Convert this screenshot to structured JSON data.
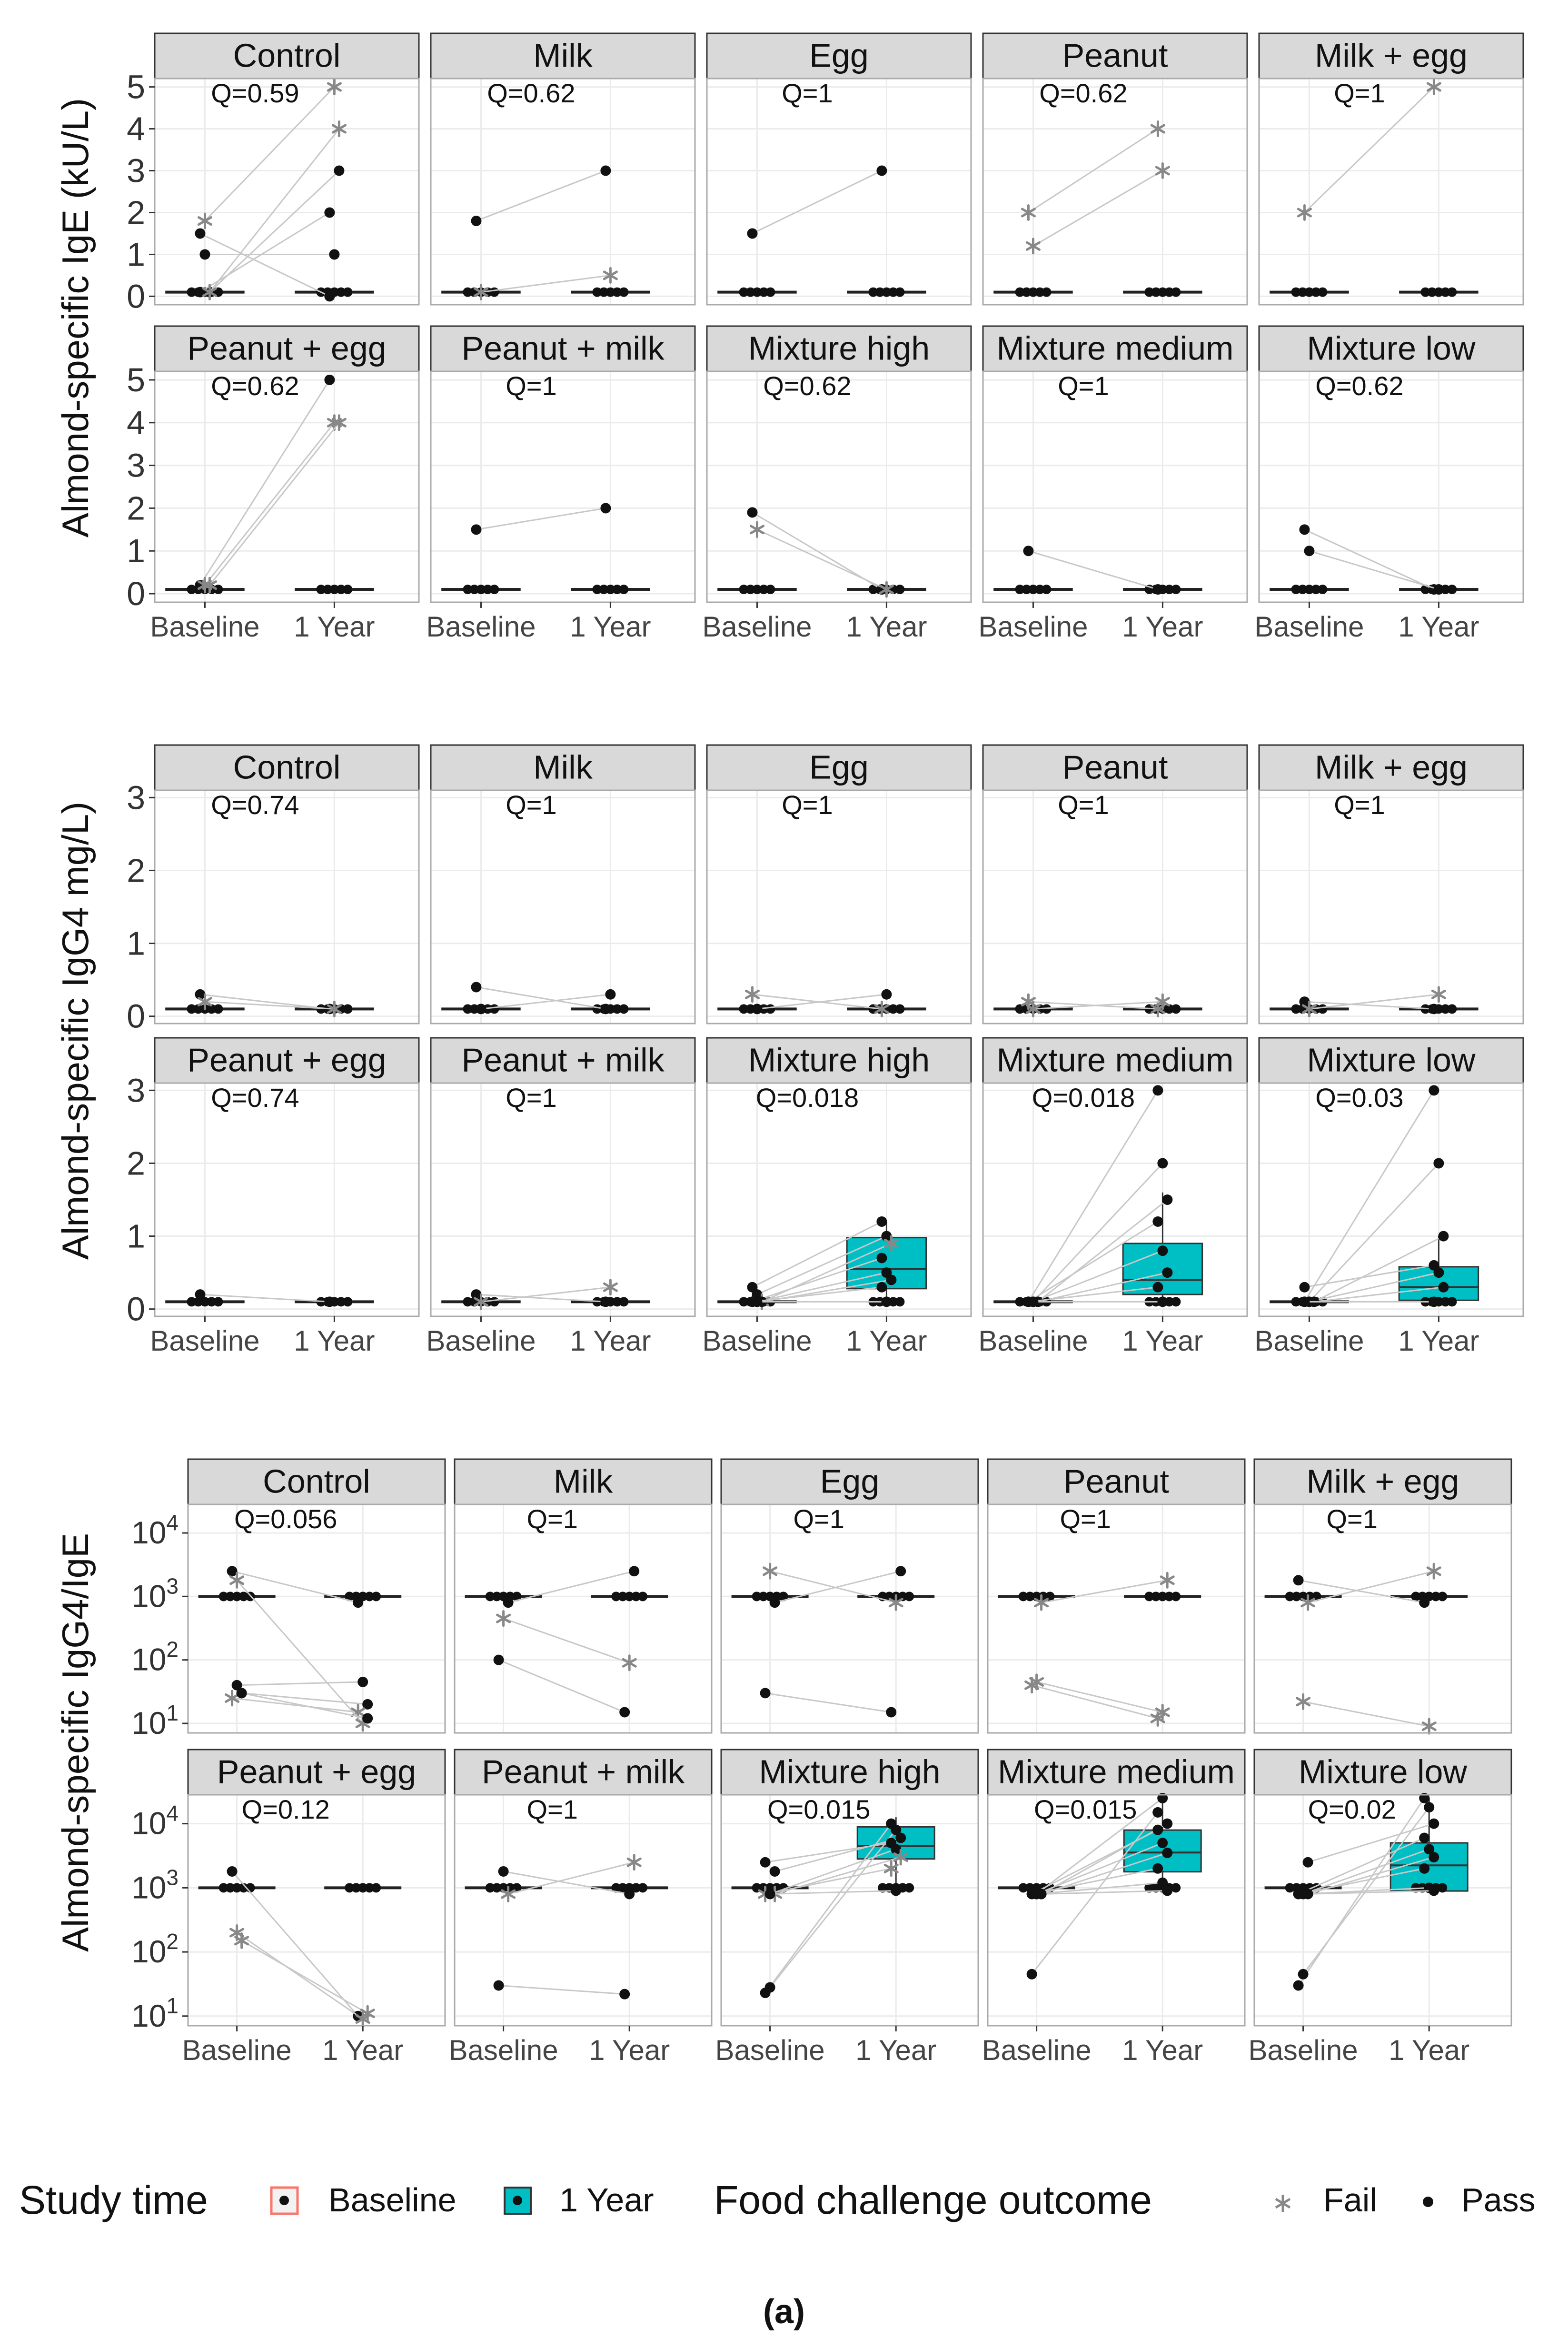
{
  "figure_label": "(a)",
  "legend": {
    "study_time_title": "Study time",
    "study_time_items": [
      {
        "label": "Baseline",
        "color": "#f8766d"
      },
      {
        "label": "1 Year",
        "color": "#00bfc4"
      }
    ],
    "outcome_title": "Food challenge outcome",
    "outcome_items": [
      {
        "label": "Fail",
        "shape": "asterisk"
      },
      {
        "label": "Pass",
        "shape": "dot"
      }
    ]
  },
  "colors": {
    "strip": "#d9d9d9",
    "panel_border": "#333333",
    "grid": "#ebebeb",
    "box_one_year": "#00bfc4",
    "box_baseline": "#f8766d",
    "line": "#c8c8c8",
    "point": "#111111",
    "fail_point": "#888888"
  },
  "chart_data": [
    {
      "type": "scatter",
      "title": "",
      "ylabel": "Almond-specific IgE (kU/L)",
      "xlabel": "",
      "yscale": "linear",
      "ylim": [
        -0.2,
        5.2
      ],
      "yticks": [
        {
          "v": 0,
          "label": "0"
        },
        {
          "v": 1,
          "label": "1"
        },
        {
          "v": 2,
          "label": "2"
        },
        {
          "v": 3,
          "label": "3"
        },
        {
          "v": 4,
          "label": "4"
        },
        {
          "v": 5,
          "label": "5"
        }
      ],
      "categories": [
        "Baseline",
        "1 Year"
      ],
      "panels": [
        {
          "title": "Control",
          "q": "Q=0.59",
          "floor": 0.1,
          "pairs": [
            [
              1.5,
              0,
              "p"
            ],
            [
              1.0,
              1.0,
              "p"
            ],
            [
              0.1,
              3.0,
              "p"
            ],
            [
              0.1,
              2.0,
              "p"
            ],
            [
              1.8,
              5.0,
              "f"
            ],
            [
              0.1,
              4.0,
              "f"
            ]
          ]
        },
        {
          "title": "Milk",
          "q": "Q=0.62",
          "floor": 0.1,
          "pairs": [
            [
              1.8,
              3.0,
              "p"
            ],
            [
              0.1,
              0.5,
              "f"
            ]
          ]
        },
        {
          "title": "Egg",
          "q": "Q=1",
          "floor": 0.1,
          "pairs": [
            [
              1.5,
              3.0,
              "p"
            ]
          ]
        },
        {
          "title": "Peanut",
          "q": "Q=0.62",
          "floor": 0.1,
          "pairs": [
            [
              2.0,
              4.0,
              "f"
            ],
            [
              1.2,
              3.0,
              "f"
            ]
          ]
        },
        {
          "title": "Milk + egg",
          "q": "Q=1",
          "floor": 0.1,
          "pairs": [
            [
              2.0,
              5.0,
              "f"
            ]
          ]
        },
        {
          "title": "Peanut + egg",
          "q": "Q=0.62",
          "floor": 0.1,
          "pairs": [
            [
              0.2,
              5.0,
              "p"
            ],
            [
              0.2,
              4.0,
              "f"
            ],
            [
              0.2,
              4.0,
              "f"
            ]
          ]
        },
        {
          "title": "Peanut + milk",
          "q": "Q=1",
          "floor": 0.1,
          "pairs": [
            [
              1.5,
              2.0,
              "p"
            ]
          ]
        },
        {
          "title": "Mixture high",
          "q": "Q=0.62",
          "floor": 0.1,
          "pairs": [
            [
              1.9,
              0.1,
              "p"
            ],
            [
              1.5,
              0.1,
              "f"
            ]
          ]
        },
        {
          "title": "Mixture medium",
          "q": "Q=1",
          "floor": 0.1,
          "pairs": [
            [
              1.0,
              0.1,
              "p"
            ]
          ]
        },
        {
          "title": "Mixture low",
          "q": "Q=0.62",
          "floor": 0.1,
          "pairs": [
            [
              1.5,
              0.1,
              "p"
            ],
            [
              1.0,
              0.1,
              "p"
            ]
          ]
        }
      ]
    },
    {
      "type": "scatter",
      "title": "",
      "ylabel": "Almond-specific IgG4 mg/L)",
      "xlabel": "",
      "yscale": "linear",
      "ylim": [
        -0.1,
        3.1
      ],
      "yticks": [
        {
          "v": 0,
          "label": "0"
        },
        {
          "v": 1,
          "label": "1"
        },
        {
          "v": 2,
          "label": "2"
        },
        {
          "v": 3,
          "label": "3"
        }
      ],
      "categories": [
        "Baseline",
        "1 Year"
      ],
      "panels": [
        {
          "title": "Control",
          "q": "Q=0.74",
          "floor": 0.1,
          "pairs": [
            [
              0.3,
              0.1,
              "p"
            ],
            [
              0.2,
              0.1,
              "f"
            ]
          ]
        },
        {
          "title": "Milk",
          "q": "Q=1",
          "floor": 0.1,
          "pairs": [
            [
              0.4,
              0.1,
              "p"
            ],
            [
              0.1,
              0.3,
              "p"
            ]
          ]
        },
        {
          "title": "Egg",
          "q": "Q=1",
          "floor": 0.1,
          "pairs": [
            [
              0.3,
              0.1,
              "f"
            ],
            [
              0.1,
              0.3,
              "p"
            ]
          ]
        },
        {
          "title": "Peanut",
          "q": "Q=1",
          "floor": 0.1,
          "pairs": [
            [
              0.2,
              0.1,
              "f"
            ],
            [
              0.1,
              0.2,
              "f"
            ]
          ]
        },
        {
          "title": "Milk + egg",
          "q": "Q=1",
          "floor": 0.1,
          "pairs": [
            [
              0.2,
              0.1,
              "p"
            ],
            [
              0.1,
              0.3,
              "f"
            ]
          ]
        },
        {
          "title": "Peanut + egg",
          "q": "Q=0.74",
          "floor": 0.1,
          "pairs": [
            [
              0.2,
              0.1,
              "p"
            ]
          ]
        },
        {
          "title": "Peanut + milk",
          "q": "Q=1",
          "floor": 0.1,
          "pairs": [
            [
              0.2,
              0.1,
              "p"
            ],
            [
              0.1,
              0.3,
              "f"
            ]
          ]
        },
        {
          "title": "Mixture high",
          "q": "Q=0.018",
          "floor": 0.1,
          "box": {
            "q1": 0.28,
            "median": 0.55,
            "q3": 0.98,
            "wlo": 0.1,
            "whi": 1.2
          },
          "pairs": [
            [
              0.3,
              1.2,
              "p"
            ],
            [
              0.2,
              1.0,
              "p"
            ],
            [
              0.1,
              0.9,
              "f"
            ],
            [
              0.1,
              0.7,
              "p"
            ],
            [
              0.1,
              0.5,
              "p"
            ],
            [
              0.1,
              0.4,
              "p"
            ],
            [
              0.1,
              0.3,
              "p"
            ],
            [
              0.1,
              0.1,
              "p"
            ]
          ]
        },
        {
          "title": "Mixture medium",
          "q": "Q=0.018",
          "floor": 0.1,
          "box": {
            "q1": 0.2,
            "median": 0.4,
            "q3": 0.9,
            "wlo": 0.1,
            "whi": 1.6
          },
          "pairs": [
            [
              0.1,
              3.0,
              "p"
            ],
            [
              0.1,
              2.0,
              "p"
            ],
            [
              0.1,
              1.5,
              "p"
            ],
            [
              0.1,
              1.2,
              "p"
            ],
            [
              0.1,
              0.8,
              "p"
            ],
            [
              0.1,
              0.5,
              "p"
            ],
            [
              0.1,
              0.3,
              "p"
            ],
            [
              0.1,
              0.1,
              "p"
            ]
          ]
        },
        {
          "title": "Mixture low",
          "q": "Q=0.03",
          "floor": 0.1,
          "box": {
            "q1": 0.12,
            "median": 0.3,
            "q3": 0.58,
            "wlo": 0.1,
            "whi": 1.0
          },
          "pairs": [
            [
              0.1,
              3.0,
              "p"
            ],
            [
              0.1,
              2.0,
              "p"
            ],
            [
              0.1,
              1.0,
              "p"
            ],
            [
              0.3,
              0.6,
              "p"
            ],
            [
              0.1,
              0.5,
              "p"
            ],
            [
              0.1,
              0.3,
              "p"
            ],
            [
              0.1,
              0.1,
              "p"
            ]
          ]
        }
      ]
    },
    {
      "type": "scatter",
      "title": "",
      "ylabel": "Almond-specific IgG4/IgE",
      "xlabel": "",
      "yscale": "log10",
      "ylim": [
        0.85,
        4.45
      ],
      "yticks": [
        {
          "v": 1,
          "base": "10",
          "exp": "1"
        },
        {
          "v": 2,
          "base": "10",
          "exp": "2"
        },
        {
          "v": 3,
          "base": "10",
          "exp": "3"
        },
        {
          "v": 4,
          "base": "10",
          "exp": "4"
        }
      ],
      "categories": [
        "Baseline",
        "1 Year"
      ],
      "panels": [
        {
          "title": "Control",
          "q": "Q=0.056",
          "floor": 1000,
          "pairs": [
            [
              2500,
              800,
              "p"
            ],
            [
              40,
              45,
              "p"
            ],
            [
              30,
              20,
              "p"
            ],
            [
              25,
              15,
              "f"
            ],
            [
              1800,
              10,
              "f"
            ],
            [
              30,
              12,
              "p"
            ]
          ]
        },
        {
          "title": "Milk",
          "q": "Q=1",
          "floor": 1000,
          "pairs": [
            [
              100,
              15,
              "p"
            ],
            [
              450,
              90,
              "f"
            ],
            [
              800,
              2500,
              "p"
            ]
          ]
        },
        {
          "title": "Egg",
          "q": "Q=1",
          "floor": 1000,
          "pairs": [
            [
              30,
              15,
              "p"
            ],
            [
              2500,
              800,
              "f"
            ],
            [
              800,
              2500,
              "p"
            ]
          ]
        },
        {
          "title": "Peanut",
          "q": "Q=1",
          "floor": 1000,
          "pairs": [
            [
              40,
              12,
              "f"
            ],
            [
              45,
              15,
              "f"
            ],
            [
              800,
              1800,
              "f"
            ]
          ]
        },
        {
          "title": "Milk + egg",
          "q": "Q=1",
          "floor": 1000,
          "pairs": [
            [
              1800,
              800,
              "p"
            ],
            [
              22,
              9,
              "f"
            ],
            [
              800,
              2500,
              "f"
            ]
          ]
        },
        {
          "title": "Peanut + egg",
          "q": "Q=0.12",
          "floor": 1000,
          "pairs": [
            [
              1800,
              10,
              "p"
            ],
            [
              200,
              9,
              "f"
            ],
            [
              150,
              11,
              "f"
            ]
          ]
        },
        {
          "title": "Peanut + milk",
          "q": "Q=1",
          "floor": 1000,
          "pairs": [
            [
              30,
              22,
              "p"
            ],
            [
              1800,
              800,
              "p"
            ],
            [
              800,
              2500,
              "f"
            ]
          ]
        },
        {
          "title": "Mixture high",
          "q": "Q=0.015",
          "floor": 1000,
          "box": {
            "log_q1": 3.45,
            "log_median": 3.65,
            "log_q3": 3.95,
            "log_wlo": 3.0,
            "log_whi": 4.1
          },
          "pairs": [
            [
              23,
              10000,
              "p"
            ],
            [
              28,
              8000,
              "p"
            ],
            [
              1800,
              6000,
              "p"
            ],
            [
              2500,
              5000,
              "p"
            ],
            [
              800,
              4000,
              "p"
            ],
            [
              800,
              3000,
              "f"
            ],
            [
              800,
              2000,
              "f"
            ],
            [
              800,
              900,
              "p"
            ]
          ]
        },
        {
          "title": "Mixture medium",
          "q": "Q=0.015",
          "floor": 1000,
          "box": {
            "log_q1": 3.25,
            "log_median": 3.55,
            "log_q3": 3.9,
            "log_wlo": 3.0,
            "log_whi": 4.4
          },
          "pairs": [
            [
              45,
              15000,
              "p"
            ],
            [
              800,
              25000,
              "p"
            ],
            [
              800,
              10000,
              "p"
            ],
            [
              800,
              8000,
              "p"
            ],
            [
              800,
              5000,
              "p"
            ],
            [
              800,
              3500,
              "p"
            ],
            [
              800,
              2000,
              "p"
            ],
            [
              800,
              1200,
              "p"
            ],
            [
              800,
              900,
              "p"
            ]
          ]
        },
        {
          "title": "Mixture low",
          "q": "Q=0.02",
          "floor": 1000,
          "box": {
            "log_q1": 2.95,
            "log_median": 3.35,
            "log_q3": 3.7,
            "log_wlo": 2.95,
            "log_whi": 4.4
          },
          "pairs": [
            [
              30,
              25000,
              "p"
            ],
            [
              45,
              18000,
              "p"
            ],
            [
              2500,
              10000,
              "p"
            ],
            [
              800,
              6000,
              "p"
            ],
            [
              800,
              4000,
              "p"
            ],
            [
              800,
              3000,
              "p"
            ],
            [
              800,
              2000,
              "p"
            ],
            [
              800,
              1000,
              "p"
            ],
            [
              800,
              900,
              "p"
            ]
          ]
        }
      ]
    }
  ]
}
